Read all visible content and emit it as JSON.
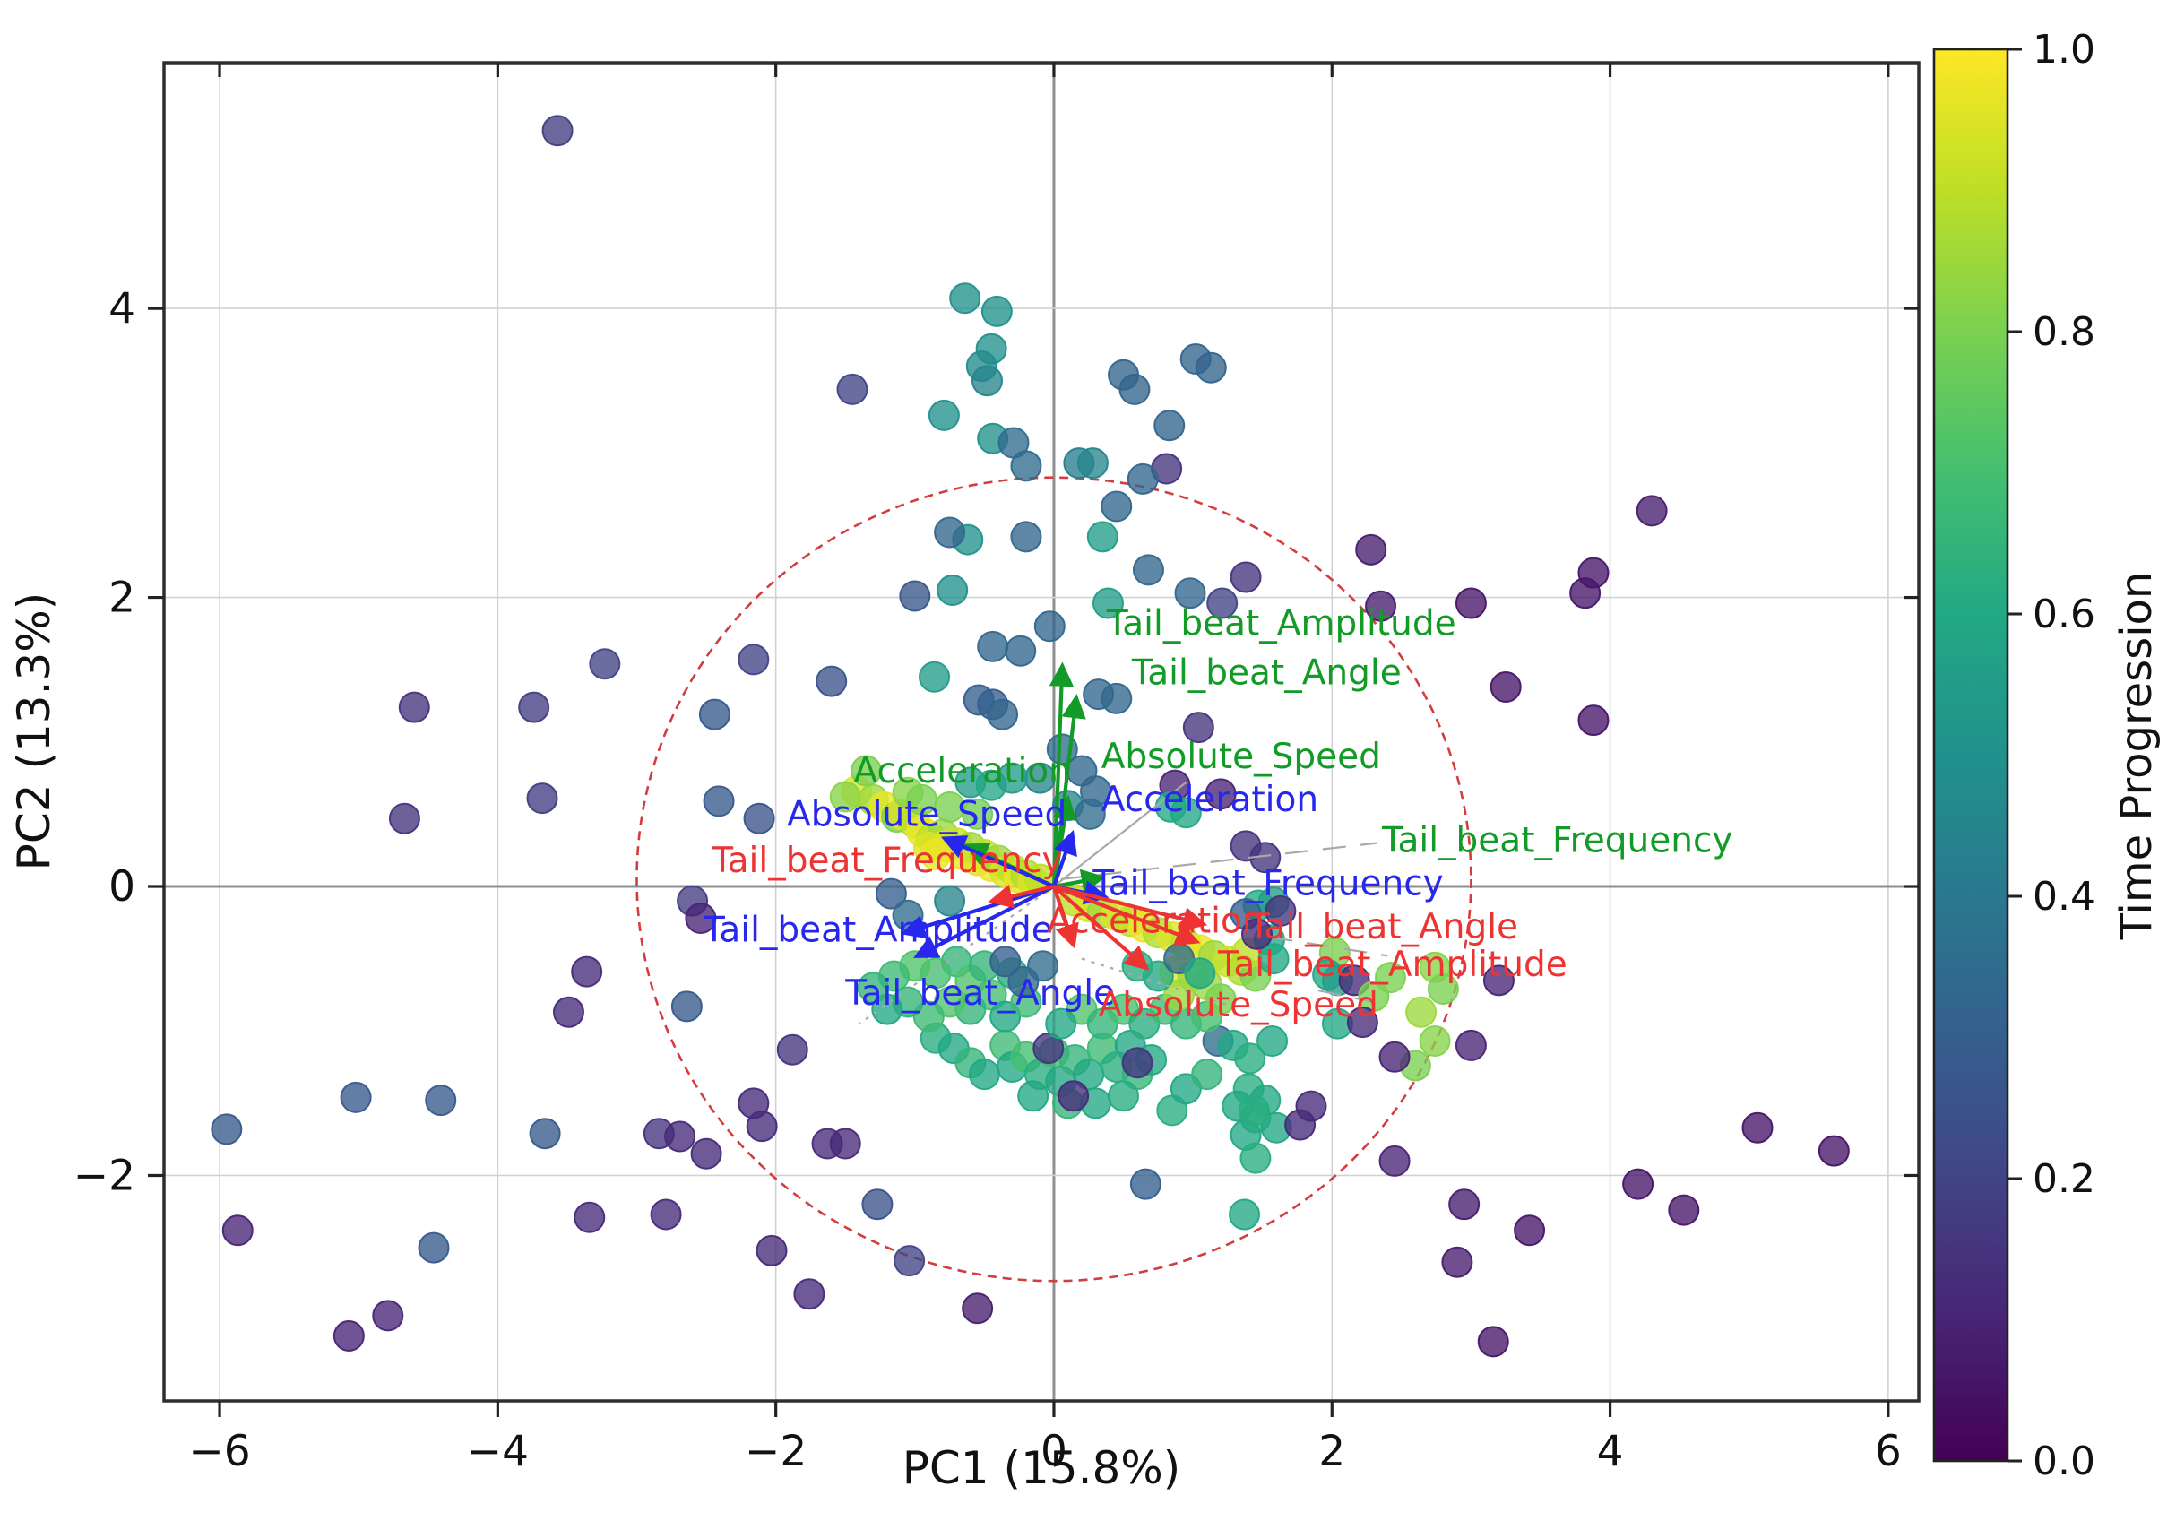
{
  "chart_data": {
    "type": "scatter",
    "title": "",
    "xlabel": "PC1 (15.8%)",
    "ylabel": "PC2 (13.3%)",
    "xlim": [
      -6.4,
      6.22
    ],
    "ylim": [
      -3.56,
      5.7
    ],
    "xticks": [
      -6,
      -4,
      -2,
      0,
      2,
      4,
      6
    ],
    "yticks": [
      -2,
      0,
      2,
      4
    ],
    "grid": true,
    "zero_lines": true,
    "correlation_circle": {
      "cx": 0,
      "cy": 0.05,
      "rx": 3.0,
      "ry": 2.78,
      "color": "#d43d3d",
      "style": "dashed"
    },
    "colorbar": {
      "label": "Time Progression",
      "ticks": [
        0.0,
        0.2,
        0.4,
        0.6,
        0.8,
        1.0
      ],
      "colormap": "viridis",
      "colormap_stops": [
        "#440154",
        "#482475",
        "#414487",
        "#355f8d",
        "#2a788e",
        "#21918c",
        "#22a884",
        "#44bf70",
        "#7ad151",
        "#bddf26",
        "#fde725"
      ]
    },
    "loading_sets": [
      {
        "name": "green-set",
        "color": "#129b26",
        "arrows": [
          {
            "label": "Tail_beat_Amplitude",
            "x": 0.06,
            "y": 1.52,
            "lx": 0.38,
            "ly": 1.74
          },
          {
            "label": "Tail_beat_Angle",
            "x": 0.16,
            "y": 1.3,
            "lx": 0.56,
            "ly": 1.4
          },
          {
            "label": "Absolute_Speed",
            "x": 0.1,
            "y": 0.6,
            "lx": 0.34,
            "ly": 0.82
          },
          {
            "label": "Acceleration",
            "x": -0.62,
            "y": 0.28,
            "lx": -1.44,
            "ly": 0.72
          },
          {
            "label": "Tail_beat_Frequency",
            "x": 0.34,
            "y": 0.06,
            "lx": 2.36,
            "ly": 0.24
          }
        ]
      },
      {
        "name": "blue-set",
        "color": "#2727ee",
        "arrows": [
          {
            "label": "Absolute_Speed",
            "x": -0.78,
            "y": 0.33,
            "lx": -1.92,
            "ly": 0.42
          },
          {
            "label": "Acceleration",
            "x": 0.13,
            "y": 0.36,
            "lx": 0.34,
            "ly": 0.52
          },
          {
            "label": "Tail_beat_Frequency",
            "x": 0.36,
            "y": -0.07,
            "lx": 0.28,
            "ly": -0.06
          },
          {
            "label": "Tail_beat_Amplitude",
            "x": -1.07,
            "y": -0.32,
            "lx": -2.52,
            "ly": -0.38
          },
          {
            "label": "Tail_beat_Angle",
            "x": -0.98,
            "y": -0.48,
            "lx": -1.5,
            "ly": -0.82
          }
        ]
      },
      {
        "name": "red-set",
        "color": "#ee3333",
        "arrows": [
          {
            "label": "Tail_beat_Frequency",
            "x": -0.44,
            "y": -0.1,
            "lx": -2.46,
            "ly": 0.1
          },
          {
            "label": "Acceleration",
            "x": 0.14,
            "y": -0.4,
            "lx": -0.05,
            "ly": -0.32
          },
          {
            "label": "Tail_beat_Angle",
            "x": 1.07,
            "y": -0.26,
            "lx": 1.4,
            "ly": -0.36
          },
          {
            "label": "Tail_beat_Amplitude",
            "x": 1.02,
            "y": -0.38,
            "lx": 1.18,
            "ly": -0.62
          },
          {
            "label": "Absolute_Speed",
            "x": 0.66,
            "y": -0.56,
            "lx": 0.32,
            "ly": -0.9
          }
        ]
      }
    ],
    "leader_lines": [
      {
        "x1": 0,
        "y1": 0,
        "x2": 0.95,
        "y2": 0.72,
        "style": "solid"
      },
      {
        "x1": 0.05,
        "y1": 0.05,
        "x2": 2.32,
        "y2": 0.3,
        "style": "longdash"
      },
      {
        "x1": 0.2,
        "y1": -0.5,
        "x2": 1.35,
        "y2": -0.85,
        "style": "dotted"
      },
      {
        "x1": 0,
        "y1": 0,
        "x2": -1.4,
        "y2": -0.95,
        "style": "dotted"
      },
      {
        "x1": 1.55,
        "y1": -0.35,
        "x2": 2.4,
        "y2": -0.48,
        "style": "longdash"
      },
      {
        "x1": 1.9,
        "y1": -0.72,
        "x2": 2.3,
        "y2": -0.8,
        "style": "longdash"
      }
    ],
    "points": [
      [
        -3.57,
        5.23,
        0.18
      ],
      [
        -4.6,
        1.24,
        0.15
      ],
      [
        -3.74,
        1.24,
        0.18
      ],
      [
        -3.23,
        1.54,
        0.2
      ],
      [
        -2.44,
        1.19,
        0.28
      ],
      [
        -1.45,
        3.44,
        0.2
      ],
      [
        -2.16,
        1.57,
        0.2
      ],
      [
        -1.6,
        1.42,
        0.25
      ],
      [
        -2.12,
        0.47,
        0.25
      ],
      [
        -4.67,
        0.47,
        0.15
      ],
      [
        -3.68,
        0.61,
        0.18
      ],
      [
        -2.41,
        0.59,
        0.28
      ],
      [
        -2.6,
        -0.1,
        0.18
      ],
      [
        -2.54,
        -0.22,
        0.1
      ],
      [
        -3.36,
        -0.59,
        0.12
      ],
      [
        -3.49,
        -0.87,
        0.12
      ],
      [
        -2.64,
        -0.83,
        0.28
      ],
      [
        -5.02,
        -1.46,
        0.28
      ],
      [
        -4.41,
        -1.48,
        0.28
      ],
      [
        -5.95,
        -1.68,
        0.28
      ],
      [
        -3.66,
        -1.71,
        0.28
      ],
      [
        -2.84,
        -1.71,
        0.15
      ],
      [
        -2.69,
        -1.73,
        0.12
      ],
      [
        -2.5,
        -1.85,
        0.12
      ],
      [
        -5.87,
        -2.38,
        0.1
      ],
      [
        -4.46,
        -2.5,
        0.28
      ],
      [
        -3.34,
        -2.29,
        0.12
      ],
      [
        -2.79,
        -2.27,
        0.12
      ],
      [
        -4.79,
        -2.97,
        0.1
      ],
      [
        -5.07,
        -3.11,
        0.1
      ],
      [
        -2.16,
        -1.5,
        0.12
      ],
      [
        -2.1,
        -1.66,
        0.12
      ],
      [
        -1.88,
        -1.13,
        0.15
      ],
      [
        -1.63,
        -1.78,
        0.12
      ],
      [
        -1.5,
        -1.78,
        0.12
      ],
      [
        -2.03,
        -2.52,
        0.12
      ],
      [
        -1.76,
        -2.82,
        0.12
      ],
      [
        -1.04,
        -2.59,
        0.2
      ],
      [
        -0.55,
        -2.92,
        0.08
      ],
      [
        -1.27,
        -2.2,
        0.25
      ],
      [
        -0.64,
        4.07,
        0.5
      ],
      [
        -0.41,
        3.98,
        0.5
      ],
      [
        -0.45,
        3.72,
        0.5
      ],
      [
        -0.52,
        3.6,
        0.48
      ],
      [
        -0.48,
        3.5,
        0.45
      ],
      [
        -0.79,
        3.26,
        0.5
      ],
      [
        -0.44,
        3.1,
        0.5
      ],
      [
        -0.29,
        3.07,
        0.35
      ],
      [
        -0.2,
        2.91,
        0.35
      ],
      [
        0.18,
        2.93,
        0.42
      ],
      [
        0.28,
        2.93,
        0.45
      ],
      [
        0.5,
        3.54,
        0.32
      ],
      [
        0.58,
        3.44,
        0.32
      ],
      [
        0.83,
        3.19,
        0.32
      ],
      [
        1.02,
        3.65,
        0.32
      ],
      [
        1.13,
        3.59,
        0.32
      ],
      [
        0.81,
        2.89,
        0.15
      ],
      [
        0.64,
        2.82,
        0.33
      ],
      [
        -0.2,
        2.42,
        0.33
      ],
      [
        -0.62,
        2.4,
        0.5
      ],
      [
        -0.75,
        2.45,
        0.33
      ],
      [
        0.45,
        2.63,
        0.33
      ],
      [
        0.35,
        2.42,
        0.55
      ],
      [
        0.68,
        2.19,
        0.33
      ],
      [
        1.38,
        2.14,
        0.15
      ],
      [
        0.98,
        2.03,
        0.33
      ],
      [
        0.39,
        1.96,
        0.55
      ],
      [
        1.21,
        1.96,
        0.2
      ],
      [
        -1.0,
        2.01,
        0.27
      ],
      [
        -0.73,
        2.05,
        0.5
      ],
      [
        -0.86,
        1.45,
        0.55
      ],
      [
        -0.44,
        1.66,
        0.33
      ],
      [
        -0.24,
        1.63,
        0.33
      ],
      [
        -0.03,
        1.8,
        0.33
      ],
      [
        -0.54,
        1.29,
        0.3
      ],
      [
        -0.44,
        1.26,
        0.3
      ],
      [
        -0.37,
        1.19,
        0.33
      ],
      [
        0.32,
        1.33,
        0.33
      ],
      [
        0.45,
        1.3,
        0.33
      ],
      [
        1.04,
        1.1,
        0.15
      ],
      [
        4.3,
        2.6,
        0.08
      ],
      [
        2.28,
        2.33,
        0.08
      ],
      [
        3.88,
        2.17,
        0.06
      ],
      [
        3.82,
        2.03,
        0.06
      ],
      [
        2.35,
        1.94,
        0.08
      ],
      [
        3.0,
        1.96,
        0.06
      ],
      [
        3.25,
        1.38,
        0.06
      ],
      [
        3.88,
        1.15,
        0.06
      ],
      [
        0.06,
        0.95,
        0.35
      ],
      [
        0.2,
        0.8,
        0.33
      ],
      [
        -0.1,
        0.75,
        0.45
      ],
      [
        0.3,
        0.66,
        0.33
      ],
      [
        0.1,
        0.56,
        0.45
      ],
      [
        0.26,
        0.5,
        0.35
      ],
      [
        0.87,
        0.7,
        0.1
      ],
      [
        1.2,
        0.64,
        0.1
      ],
      [
        0.84,
        0.55,
        0.6
      ],
      [
        0.95,
        0.51,
        0.6
      ],
      [
        1.38,
        0.28,
        0.15
      ],
      [
        1.52,
        0.2,
        0.15
      ],
      [
        -1.42,
        0.66,
        0.95
      ],
      [
        -1.5,
        0.62,
        0.82
      ],
      [
        -1.3,
        0.6,
        0.85
      ],
      [
        -1.22,
        0.55,
        0.97
      ],
      [
        -1.35,
        0.8,
        0.8
      ],
      [
        -1.13,
        0.48,
        0.8
      ],
      [
        -1.1,
        0.5,
        0.95
      ],
      [
        -1.0,
        0.44,
        0.9
      ],
      [
        -0.95,
        0.38,
        0.97
      ],
      [
        -0.88,
        0.33,
        0.9
      ],
      [
        -0.8,
        0.36,
        0.85
      ],
      [
        -0.78,
        0.28,
        0.97
      ],
      [
        -0.7,
        0.3,
        0.92
      ],
      [
        -0.65,
        0.22,
        0.97
      ],
      [
        -0.6,
        0.27,
        0.85
      ],
      [
        -0.55,
        0.18,
        0.95
      ],
      [
        -0.5,
        0.22,
        0.9
      ],
      [
        -0.45,
        0.14,
        0.97
      ],
      [
        -0.4,
        0.18,
        0.85
      ],
      [
        -0.35,
        0.1,
        0.95
      ],
      [
        -0.3,
        0.12,
        0.9
      ],
      [
        -0.25,
        0.06,
        0.97
      ],
      [
        -0.2,
        0.08,
        0.88
      ],
      [
        -0.15,
        0.03,
        0.95
      ],
      [
        -0.1,
        0.05,
        0.9
      ],
      [
        -0.9,
        0.27,
        0.95
      ],
      [
        -0.85,
        0.22,
        0.97
      ],
      [
        -0.75,
        0.55,
        0.8
      ],
      [
        -0.55,
        0.5,
        0.78
      ],
      [
        -1.05,
        0.65,
        0.82
      ],
      [
        -0.95,
        0.6,
        0.8
      ],
      [
        -0.6,
        0.72,
        0.55
      ],
      [
        -0.45,
        0.7,
        0.6
      ],
      [
        -0.3,
        0.75,
        0.55
      ],
      [
        0.15,
        -0.1,
        0.9
      ],
      [
        0.25,
        -0.14,
        0.95
      ],
      [
        0.35,
        -0.18,
        0.85
      ],
      [
        0.45,
        -0.2,
        0.95
      ],
      [
        0.55,
        -0.24,
        0.9
      ],
      [
        0.65,
        -0.28,
        0.97
      ],
      [
        0.75,
        -0.32,
        0.88
      ],
      [
        0.85,
        -0.35,
        0.95
      ],
      [
        0.95,
        -0.4,
        0.9
      ],
      [
        1.05,
        -0.44,
        0.97
      ],
      [
        1.15,
        -0.48,
        0.85
      ],
      [
        1.25,
        -0.52,
        0.92
      ],
      [
        1.35,
        -0.58,
        0.88
      ],
      [
        1.45,
        -0.62,
        0.8
      ],
      [
        0.87,
        -0.59,
        0.97
      ],
      [
        1.0,
        -0.62,
        0.85
      ],
      [
        1.39,
        -0.46,
        0.9
      ],
      [
        1.55,
        -0.37,
        0.6
      ],
      [
        1.58,
        -0.5,
        0.6
      ],
      [
        1.47,
        -0.13,
        0.6
      ],
      [
        1.58,
        -0.11,
        0.55
      ],
      [
        1.63,
        -0.17,
        0.15
      ],
      [
        1.38,
        -0.19,
        0.3
      ],
      [
        1.46,
        -0.33,
        0.12
      ],
      [
        2.02,
        -0.46,
        0.8
      ],
      [
        1.97,
        -0.61,
        0.6
      ],
      [
        2.04,
        -0.65,
        0.55
      ],
      [
        2.16,
        -0.65,
        0.12
      ],
      [
        2.42,
        -0.63,
        0.8
      ],
      [
        2.74,
        -0.56,
        0.82
      ],
      [
        2.8,
        -0.71,
        0.8
      ],
      [
        3.2,
        -0.65,
        0.1
      ],
      [
        2.3,
        -0.76,
        0.8
      ],
      [
        2.64,
        -0.87,
        0.85
      ],
      [
        2.6,
        -1.24,
        0.8
      ],
      [
        2.74,
        -1.07,
        0.82
      ],
      [
        2.04,
        -0.95,
        0.6
      ],
      [
        1.57,
        -1.07,
        0.6
      ],
      [
        2.45,
        -1.18,
        0.1
      ],
      [
        2.22,
        -0.94,
        0.12
      ],
      [
        3.0,
        -1.1,
        0.1
      ],
      [
        1.4,
        -1.4,
        0.62
      ],
      [
        1.52,
        -1.48,
        0.6
      ],
      [
        1.45,
        -1.6,
        0.62
      ],
      [
        1.6,
        -1.67,
        0.6
      ],
      [
        1.38,
        -1.72,
        0.6
      ],
      [
        1.85,
        -1.52,
        0.12
      ],
      [
        -0.85,
        -1.05,
        0.62
      ],
      [
        -0.72,
        -1.12,
        0.6
      ],
      [
        -0.6,
        -1.22,
        0.65
      ],
      [
        -0.5,
        -1.3,
        0.6
      ],
      [
        -0.35,
        -1.1,
        0.68
      ],
      [
        -0.3,
        -1.25,
        0.6
      ],
      [
        -0.2,
        -1.18,
        0.7
      ],
      [
        -0.1,
        -1.3,
        0.62
      ],
      [
        0.0,
        -1.15,
        0.68
      ],
      [
        0.05,
        -1.35,
        0.6
      ],
      [
        0.15,
        -1.2,
        0.65
      ],
      [
        0.25,
        -1.3,
        0.6
      ],
      [
        0.35,
        -1.12,
        0.68
      ],
      [
        0.45,
        -1.25,
        0.62
      ],
      [
        0.55,
        -1.1,
        0.6
      ],
      [
        0.6,
        -1.3,
        0.65
      ],
      [
        0.7,
        -1.2,
        0.6
      ],
      [
        0.5,
        -1.45,
        0.62
      ],
      [
        0.3,
        -1.5,
        0.6
      ],
      [
        0.1,
        -1.5,
        0.65
      ],
      [
        -0.15,
        -1.45,
        0.6
      ],
      [
        0.85,
        -1.55,
        0.62
      ],
      [
        0.95,
        -1.4,
        0.6
      ],
      [
        1.1,
        -1.3,
        0.65
      ],
      [
        1.18,
        -1.07,
        0.35
      ],
      [
        1.29,
        -1.1,
        0.6
      ],
      [
        1.41,
        -1.19,
        0.62
      ],
      [
        1.32,
        -1.52,
        0.6
      ],
      [
        1.44,
        -1.55,
        0.62
      ],
      [
        -0.04,
        -1.12,
        0.15
      ],
      [
        0.14,
        -1.45,
        0.12
      ],
      [
        1.77,
        -1.65,
        0.12
      ],
      [
        0.6,
        -1.22,
        0.15
      ],
      [
        -0.7,
        -0.52,
        0.65
      ],
      [
        -0.85,
        -0.6,
        0.7
      ],
      [
        -1.0,
        -0.55,
        0.72
      ],
      [
        -1.15,
        -0.62,
        0.68
      ],
      [
        -0.6,
        -0.65,
        0.72
      ],
      [
        -0.5,
        -0.55,
        0.65
      ],
      [
        -0.45,
        -0.75,
        0.7
      ],
      [
        -0.6,
        -0.85,
        0.65
      ],
      [
        -0.75,
        -0.8,
        0.72
      ],
      [
        -0.9,
        -0.9,
        0.68
      ],
      [
        -1.05,
        -0.8,
        0.65
      ],
      [
        -0.35,
        -0.9,
        0.6
      ],
      [
        -0.2,
        -0.8,
        0.68
      ],
      [
        -0.3,
        -0.6,
        0.62
      ],
      [
        -1.2,
        -0.85,
        0.6
      ],
      [
        -1.3,
        -0.7,
        0.65
      ],
      [
        0.2,
        -0.85,
        0.72
      ],
      [
        0.35,
        -0.95,
        0.65
      ],
      [
        0.5,
        -0.85,
        0.7
      ],
      [
        0.65,
        -0.95,
        0.62
      ],
      [
        0.8,
        -0.85,
        0.68
      ],
      [
        0.95,
        -0.95,
        0.65
      ],
      [
        1.1,
        -0.9,
        0.7
      ],
      [
        0.05,
        -0.95,
        0.6
      ],
      [
        0.9,
        -0.75,
        0.85
      ],
      [
        1.1,
        -0.68,
        0.85
      ],
      [
        1.2,
        -0.78,
        0.8
      ],
      [
        0.75,
        -0.62,
        0.6
      ],
      [
        0.6,
        -0.55,
        0.62
      ],
      [
        0.9,
        -0.5,
        0.35
      ],
      [
        1.05,
        -0.6,
        0.6
      ],
      [
        -1.17,
        -0.05,
        0.3
      ],
      [
        -1.05,
        -0.2,
        0.35
      ],
      [
        -0.75,
        -0.1,
        0.45
      ],
      [
        -0.35,
        -0.52,
        0.3
      ],
      [
        -0.22,
        -0.66,
        0.32
      ],
      [
        -0.08,
        -0.55,
        0.35
      ],
      [
        0.66,
        -2.06,
        0.3
      ],
      [
        1.37,
        -2.27,
        0.6
      ],
      [
        1.45,
        -1.88,
        0.62
      ],
      [
        2.45,
        -1.9,
        0.1
      ],
      [
        2.95,
        -2.2,
        0.08
      ],
      [
        2.9,
        -2.6,
        0.08
      ],
      [
        3.42,
        -2.38,
        0.06
      ],
      [
        3.16,
        -3.15,
        0.06
      ],
      [
        4.2,
        -2.06,
        0.06
      ],
      [
        4.53,
        -2.24,
        0.06
      ],
      [
        5.06,
        -1.67,
        0.06
      ],
      [
        5.61,
        -1.83,
        0.06
      ]
    ]
  }
}
